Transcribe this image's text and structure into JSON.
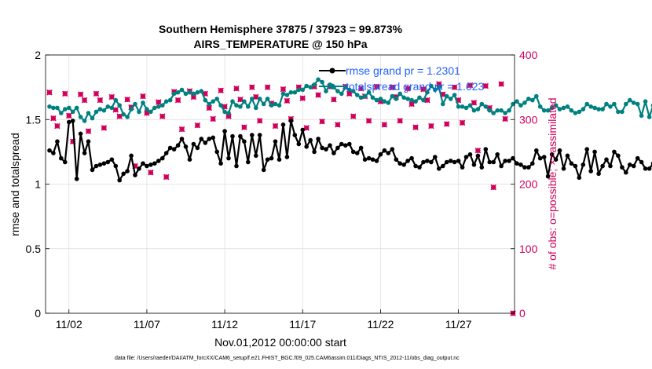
{
  "colors": {
    "rmse": "#000000",
    "totalspread": "#008080",
    "obs": "#d1005a",
    "legend_text": "#1f5fff",
    "grid": "#dcdcdc"
  },
  "chart_data": {
    "type": "line",
    "title_line1": "Southern Hemisphere 37875 / 37923 = 99.873%",
    "title_line2": "AIRS_TEMPERATURE @ 150 hPa",
    "xlabel": "Nov.01,2012 00:00:00 start",
    "ylabel": "rmse and totalspread",
    "y2label": "# of obs: o=possible; ×=assimilated",
    "footer": "data file: /Users/raeder/DAI/ATM_forcXX/CAM6_setup/f.e21.FHIST_BGC.f09_025.CAM6assim.011/Diags_NTrS_2012-11/obs_diag_output.nc",
    "xlim": [
      0.5,
      30.6
    ],
    "ylim": [
      0,
      2
    ],
    "y2lim": [
      0,
      400
    ],
    "x_ticks": [
      2,
      7,
      12,
      17,
      22,
      27
    ],
    "x_tick_labels": [
      "11/02",
      "11/07",
      "11/12",
      "11/17",
      "11/22",
      "11/27"
    ],
    "y_ticks": [
      0,
      0.5,
      1,
      1.5,
      2
    ],
    "y_tick_labels": [
      "0",
      "0.5",
      "1",
      "1.5",
      "2"
    ],
    "y2_ticks": [
      0,
      100,
      200,
      300,
      400
    ],
    "y2_tick_labels": [
      "0",
      "100",
      "200",
      "300",
      "400"
    ],
    "grid": true,
    "legend_position": "top-right",
    "legend": [
      "rmse grand pr = 1.2301",
      "totalspread grand pr = 1.623"
    ],
    "x_step": 0.25,
    "series": [
      {
        "name": "rmse grand pr = 1.2301",
        "axis": "left",
        "values": [
          1.26,
          1.24,
          1.33,
          1.2,
          1.17,
          1.48,
          1.49,
          1.04,
          1.39,
          1.24,
          1.33,
          1.11,
          1.14,
          1.15,
          1.16,
          1.17,
          1.19,
          1.14,
          1.03,
          1.08,
          1.1,
          1.22,
          1.07,
          1.12,
          1.16,
          1.14,
          1.15,
          1.16,
          1.18,
          1.2,
          1.24,
          1.28,
          1.27,
          1.3,
          1.35,
          1.29,
          1.19,
          1.31,
          1.28,
          1.35,
          1.32,
          1.35,
          1.36,
          1.25,
          1.16,
          1.41,
          1.2,
          1.37,
          1.14,
          1.37,
          1.33,
          1.17,
          1.38,
          1.22,
          1.38,
          1.11,
          1.19,
          1.2,
          1.33,
          1.19,
          1.46,
          1.21,
          1.49,
          1.38,
          1.31,
          1.42,
          1.29,
          1.34,
          1.25,
          1.35,
          1.28,
          1.27,
          1.3,
          1.24,
          1.28,
          1.31,
          1.3,
          1.31,
          1.25,
          1.24,
          1.28,
          1.19,
          1.2,
          1.19,
          1.18,
          1.23,
          1.26,
          1.24,
          1.27,
          1.19,
          1.16,
          1.15,
          1.18,
          1.2,
          1.14,
          1.13,
          1.17,
          1.18,
          1.17,
          1.21,
          1.12,
          1.14,
          1.17,
          1.18,
          1.17,
          1.18,
          1.13,
          1.21,
          1.23,
          1.15,
          1.22,
          1.13,
          1.27,
          1.17,
          1.17,
          1.23,
          1.14,
          1.18,
          1.18,
          1.2,
          1.16,
          1.15,
          1.13,
          1.13,
          1.16,
          1.26,
          1.2,
          1.21,
          1.06,
          1.23,
          1.19,
          1.26,
          1.12,
          1.22,
          1.16,
          1.14,
          1.05,
          1.15,
          1.27,
          1.1,
          1.25,
          1.08,
          1.14,
          1.19,
          1.14,
          1.25,
          1.22,
          1.13,
          1.09,
          1.15,
          1.14,
          1.2,
          1.17,
          1.12,
          1.12,
          1.16,
          1.13,
          1.22,
          1.14,
          1.13
        ]
      },
      {
        "name": "totalspread grand pr = 1.623",
        "axis": "left",
        "values": [
          1.6,
          1.59,
          1.59,
          1.55,
          1.58,
          1.59,
          1.56,
          1.59,
          1.52,
          1.49,
          1.55,
          1.51,
          1.56,
          1.58,
          1.57,
          1.6,
          1.59,
          1.65,
          1.61,
          1.54,
          1.52,
          1.58,
          1.62,
          1.56,
          1.63,
          1.58,
          1.56,
          1.59,
          1.6,
          1.61,
          1.64,
          1.65,
          1.7,
          1.71,
          1.73,
          1.7,
          1.71,
          1.7,
          1.71,
          1.72,
          1.65,
          1.62,
          1.64,
          1.66,
          1.61,
          1.56,
          1.55,
          1.64,
          1.61,
          1.6,
          1.64,
          1.6,
          1.66,
          1.59,
          1.66,
          1.62,
          1.66,
          1.61,
          1.62,
          1.61,
          1.7,
          1.69,
          1.71,
          1.71,
          1.73,
          1.73,
          1.76,
          1.75,
          1.77,
          1.81,
          1.79,
          1.72,
          1.77,
          1.75,
          1.72,
          1.7,
          1.75,
          1.73,
          1.72,
          1.69,
          1.67,
          1.68,
          1.71,
          1.67,
          1.65,
          1.66,
          1.64,
          1.63,
          1.68,
          1.66,
          1.7,
          1.67,
          1.66,
          1.65,
          1.64,
          1.67,
          1.65,
          1.71,
          1.76,
          1.73,
          1.75,
          1.62,
          1.68,
          1.66,
          1.69,
          1.6,
          1.6,
          1.59,
          1.61,
          1.57,
          1.58,
          1.62,
          1.6,
          1.57,
          1.55,
          1.57,
          1.57,
          1.55,
          1.57,
          1.62,
          1.64,
          1.61,
          1.63,
          1.66,
          1.65,
          1.68,
          1.6,
          1.57,
          1.57,
          1.59,
          1.61,
          1.58,
          1.59,
          1.6,
          1.57,
          1.55,
          1.56,
          1.58,
          1.62,
          1.6,
          1.59,
          1.58,
          1.58,
          1.62,
          1.6,
          1.62,
          1.56,
          1.56,
          1.62,
          1.65,
          1.63,
          1.62,
          1.53,
          1.64,
          1.52,
          1.61,
          1.58,
          1.57,
          1.59,
          1.57,
          1.52,
          1.5
        ]
      }
    ],
    "obs_series": {
      "axis": "right",
      "x": [
        0.75,
        1.0,
        1.25,
        1.75,
        2.0,
        2.25,
        2.75,
        3.0,
        3.25,
        3.75,
        4.0,
        4.25,
        4.75,
        5.0,
        5.25,
        5.75,
        6.0,
        6.25,
        6.75,
        7.0,
        7.25,
        7.75,
        8.0,
        8.25,
        8.75,
        9.0,
        9.25,
        9.75,
        10.0,
        10.25,
        10.75,
        11.0,
        11.25,
        11.75,
        12.0,
        12.25,
        12.75,
        13.0,
        13.25,
        13.75,
        14.0,
        14.25,
        14.75,
        15.0,
        15.25,
        15.75,
        16.0,
        16.25,
        16.75,
        17.0,
        17.25,
        17.75,
        18.0,
        18.25,
        18.75,
        19.0,
        19.25,
        19.75,
        20.0,
        20.25,
        20.75,
        21.0,
        21.25,
        21.75,
        22.0,
        22.25,
        22.75,
        23.0,
        23.25,
        23.75,
        24.0,
        24.25,
        24.75,
        25.0,
        25.25,
        25.75,
        26.0,
        26.25,
        26.75,
        27.0,
        27.25,
        27.75,
        28.0,
        28.25,
        28.75,
        29.0,
        29.25,
        29.75,
        30.0,
        30.5
      ],
      "values": [
        342,
        302,
        290,
        340,
        306,
        266,
        339,
        330,
        282,
        340,
        330,
        287,
        335,
        315,
        305,
        331,
        319,
        228,
        336,
        310,
        218,
        327,
        305,
        211,
        343,
        330,
        285,
        344,
        335,
        291,
        340,
        318,
        301,
        345,
        320,
        305,
        348,
        331,
        288,
        350,
        335,
        298,
        350,
        325,
        290,
        347,
        329,
        301,
        350,
        333,
        287,
        351,
        338,
        297,
        351,
        331,
        292,
        351,
        340,
        305,
        348,
        336,
        298,
        351,
        328,
        292,
        350,
        335,
        298,
        348,
        324,
        288,
        347,
        330,
        290,
        355,
        339,
        293,
        350,
        330,
        295,
        353,
        326,
        252,
        352,
        318,
        195,
        355,
        301,
        0
      ]
    }
  }
}
